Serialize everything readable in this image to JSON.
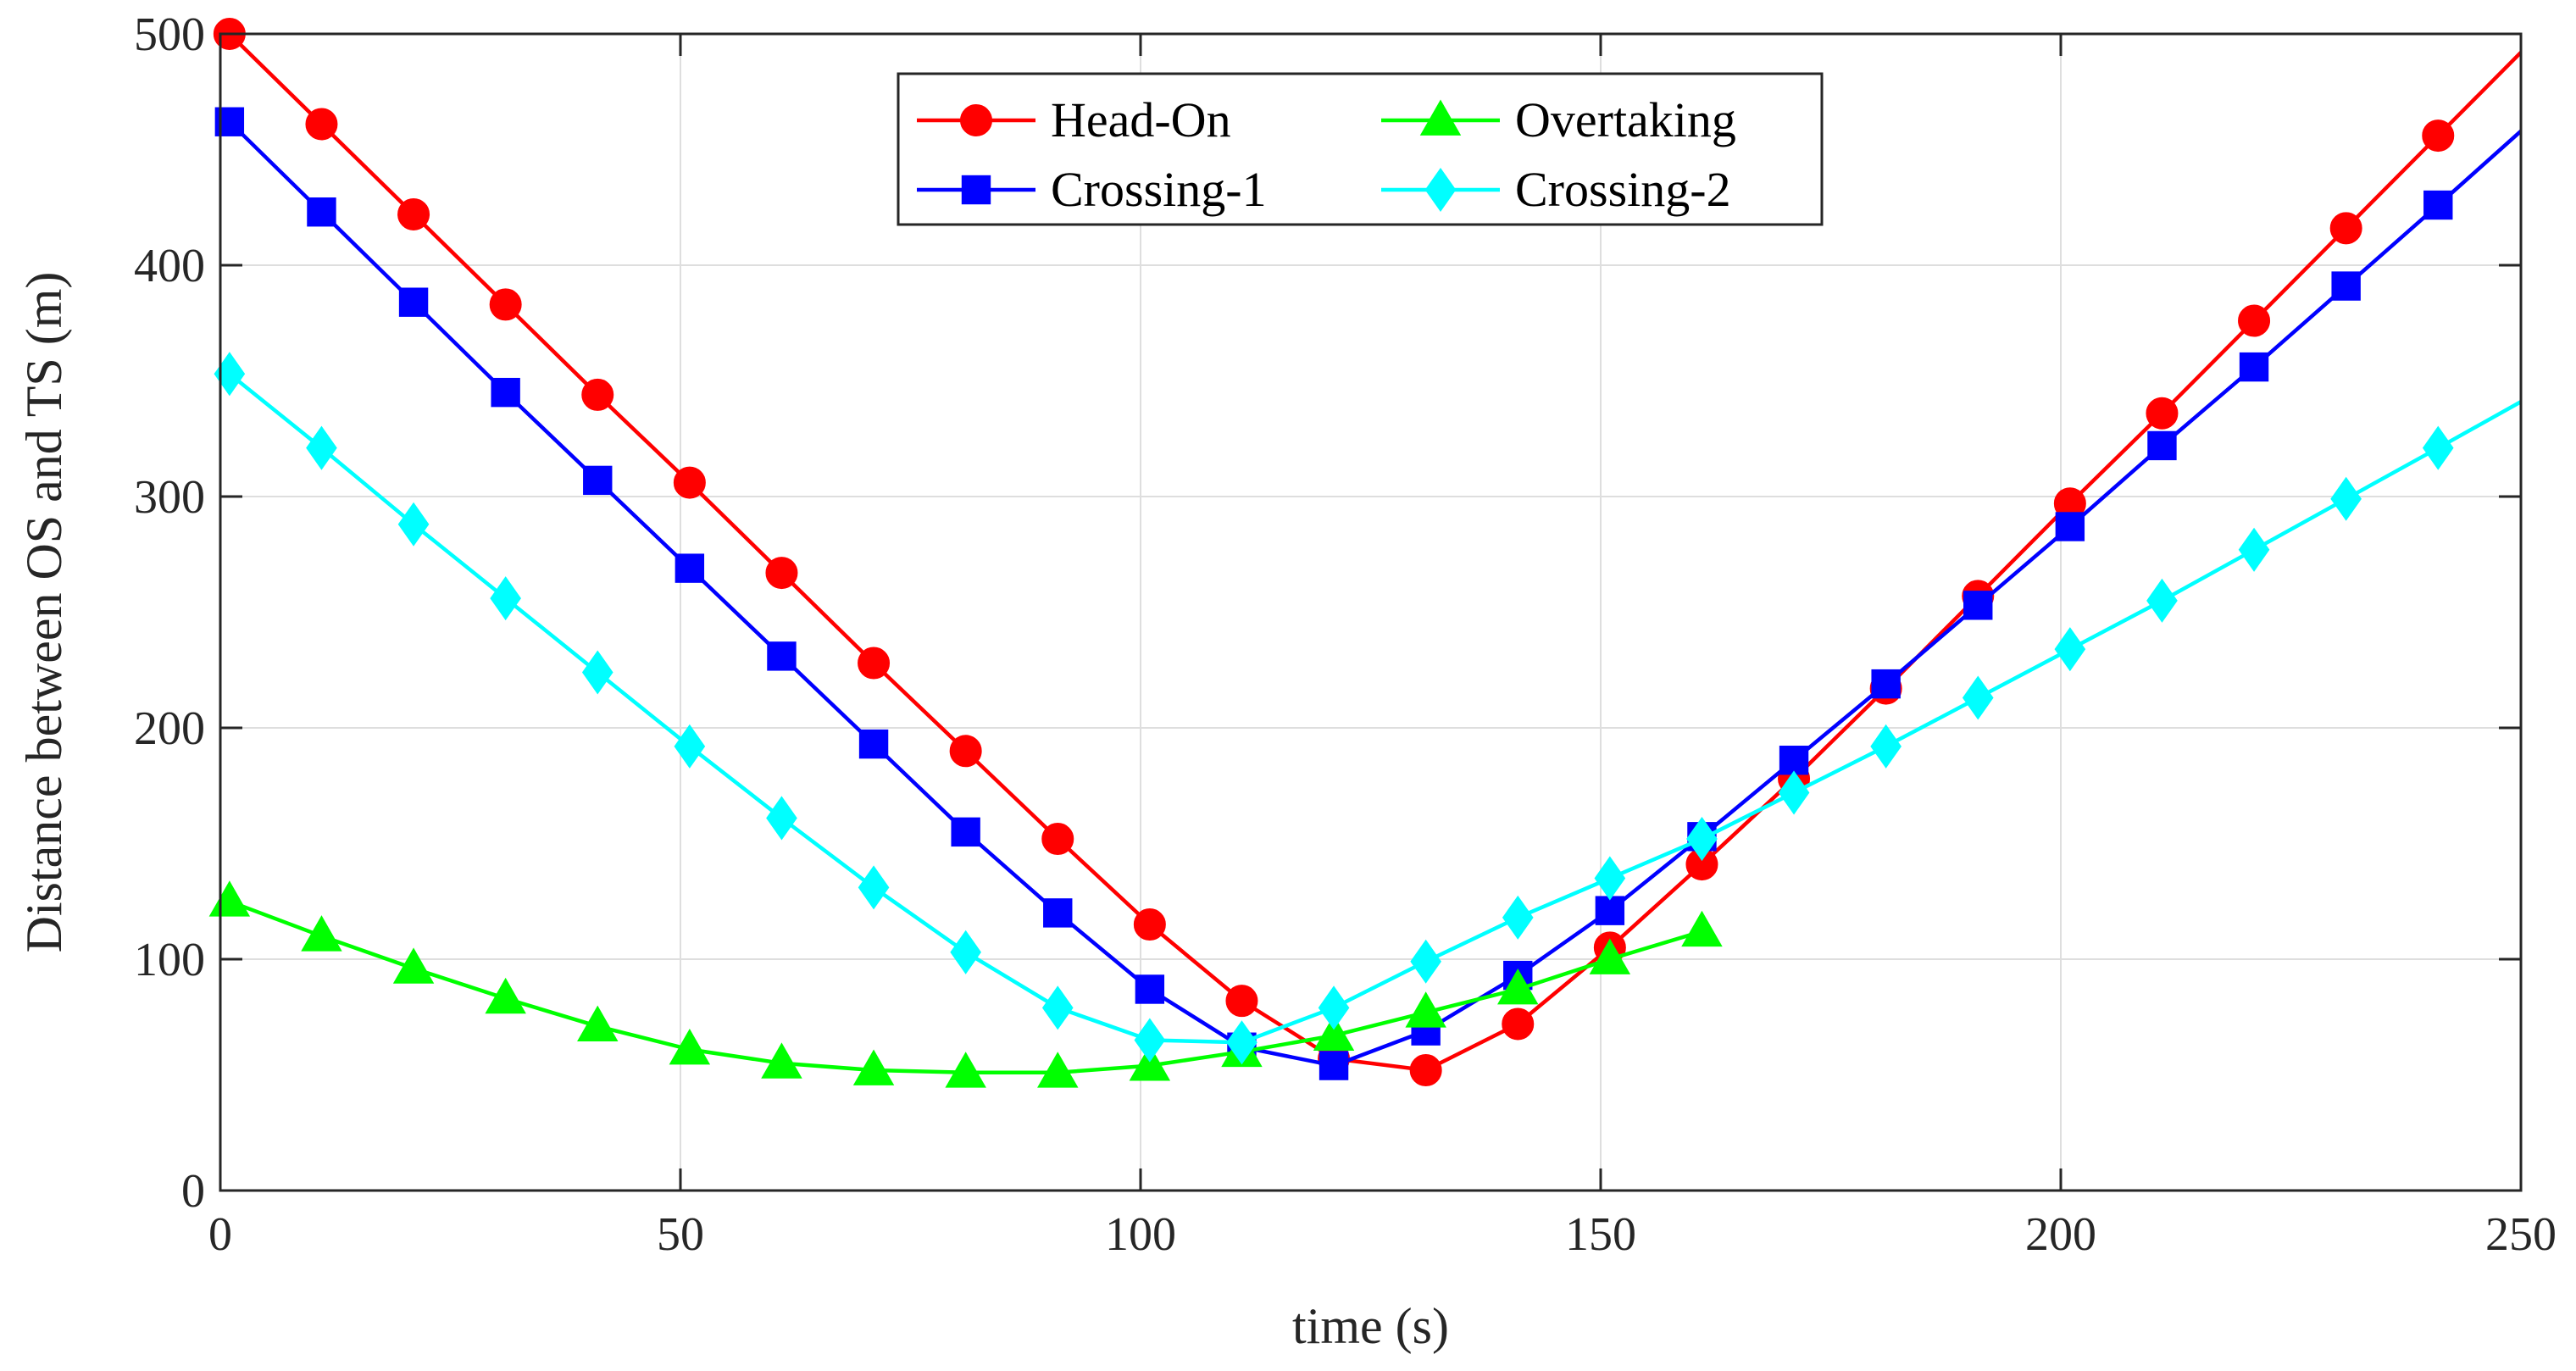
{
  "chart_data": {
    "type": "line",
    "title": "",
    "xlabel": "time (s)",
    "ylabel": "Distance between OS and TS (m)",
    "xlim": [
      0,
      250
    ],
    "ylim": [
      0,
      500
    ],
    "x_ticks": [
      0,
      50,
      100,
      150,
      200,
      250
    ],
    "y_ticks": [
      0,
      100,
      200,
      300,
      400,
      500
    ],
    "x_tick_labels": [
      "0",
      "50",
      "100",
      "150",
      "200",
      "250"
    ],
    "y_tick_labels": [
      "0",
      "100",
      "200",
      "300",
      "400",
      "500"
    ],
    "grid": true,
    "legend_position": "top-center",
    "series": [
      {
        "name": "Head-On",
        "color": "#ff0000",
        "marker": "circle",
        "line_x": [
          1,
          11,
          21,
          31,
          41,
          51,
          61,
          71,
          81,
          91,
          101,
          111,
          121,
          131,
          141,
          151,
          161,
          171,
          181,
          191,
          201,
          211,
          221,
          231,
          241,
          250
        ],
        "line_y": [
          500,
          461,
          422,
          383,
          344,
          306,
          267,
          228,
          190,
          152,
          115,
          82,
          57,
          52,
          72,
          105,
          141,
          178,
          217,
          257,
          297,
          336,
          376,
          416,
          456,
          492
        ],
        "marker_x": [
          1,
          11,
          21,
          31,
          41,
          51,
          61,
          71,
          81,
          91,
          101,
          111,
          121,
          131,
          141,
          151,
          161,
          171,
          181,
          191,
          201,
          211,
          221,
          231,
          241
        ],
        "marker_y": [
          500,
          461,
          422,
          383,
          344,
          306,
          267,
          228,
          190,
          152,
          115,
          82,
          57,
          52,
          72,
          105,
          141,
          178,
          217,
          257,
          297,
          336,
          376,
          416,
          456
        ]
      },
      {
        "name": "Crossing-1",
        "color": "#0000ff",
        "marker": "square",
        "line_x": [
          1,
          11,
          21,
          31,
          41,
          51,
          61,
          71,
          81,
          91,
          101,
          111,
          121,
          131,
          141,
          151,
          161,
          171,
          181,
          191,
          201,
          211,
          221,
          231,
          241,
          250
        ],
        "line_y": [
          462,
          423,
          384,
          345,
          307,
          269,
          231,
          193,
          155,
          120,
          87,
          62,
          54,
          69,
          93,
          121,
          153,
          186,
          219,
          253,
          287,
          322,
          356,
          391,
          426,
          458
        ],
        "marker_x": [
          1,
          11,
          21,
          31,
          41,
          51,
          61,
          71,
          81,
          91,
          101,
          111,
          121,
          131,
          141,
          151,
          161,
          171,
          181,
          191,
          201,
          211,
          221,
          231,
          241
        ],
        "marker_y": [
          462,
          423,
          384,
          345,
          307,
          269,
          231,
          193,
          155,
          120,
          87,
          62,
          54,
          69,
          93,
          121,
          153,
          186,
          219,
          253,
          287,
          322,
          356,
          391,
          426
        ]
      },
      {
        "name": "Overtaking",
        "color": "#00ff00",
        "marker": "triangle",
        "line_x": [
          1,
          11,
          21,
          31,
          41,
          51,
          61,
          71,
          81,
          91,
          101,
          111,
          121,
          131,
          141,
          151,
          161
        ],
        "line_y": [
          125,
          110,
          96,
          83,
          71,
          61,
          55,
          52,
          51,
          51,
          54,
          60,
          67,
          77,
          87,
          100,
          112
        ],
        "marker_x": [
          1,
          11,
          21,
          31,
          41,
          51,
          61,
          71,
          81,
          91,
          101,
          111,
          121,
          131,
          141,
          151,
          161
        ],
        "marker_y": [
          125,
          110,
          96,
          83,
          71,
          61,
          55,
          52,
          51,
          51,
          54,
          60,
          67,
          77,
          87,
          100,
          112
        ]
      },
      {
        "name": "Crossing-2",
        "color": "#00ffff",
        "marker": "diamond",
        "line_x": [
          1,
          11,
          21,
          31,
          41,
          51,
          61,
          71,
          81,
          91,
          101,
          111,
          121,
          131,
          141,
          151,
          161,
          171,
          181,
          191,
          201,
          211,
          221,
          231,
          241,
          250
        ],
        "line_y": [
          353,
          321,
          288,
          256,
          224,
          192,
          161,
          131,
          103,
          79,
          65,
          64,
          79,
          99,
          118,
          135,
          152,
          172,
          192,
          213,
          234,
          255,
          277,
          299,
          321,
          341
        ],
        "marker_x": [
          1,
          11,
          21,
          31,
          41,
          51,
          61,
          71,
          81,
          91,
          101,
          111,
          121,
          131,
          141,
          151,
          161,
          171,
          181,
          191,
          201,
          211,
          221,
          231,
          241
        ],
        "marker_y": [
          353,
          321,
          288,
          256,
          224,
          192,
          161,
          131,
          103,
          79,
          65,
          64,
          79,
          99,
          118,
          135,
          152,
          172,
          192,
          213,
          234,
          255,
          277,
          299,
          321
        ]
      }
    ],
    "legend_order": [
      "Head-On",
      "Overtaking",
      "Crossing-1",
      "Crossing-2"
    ]
  }
}
